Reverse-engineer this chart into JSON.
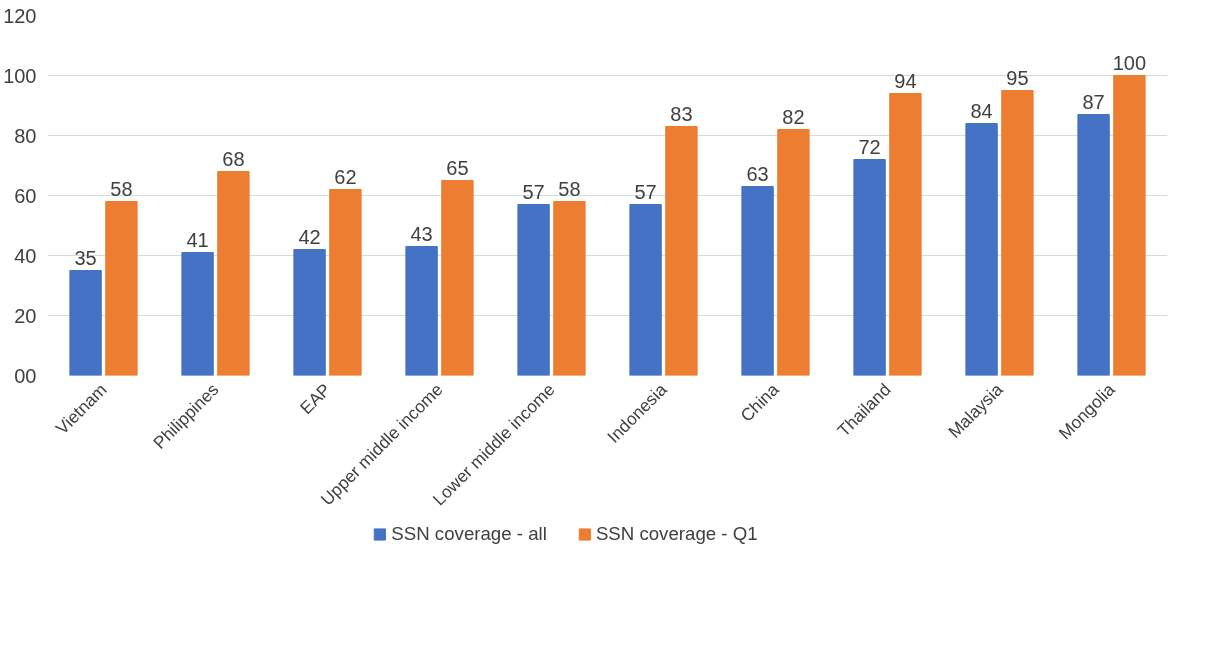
{
  "chart_data": {
    "type": "bar",
    "categories": [
      "Vietnam",
      "Philippines",
      "EAP",
      "Upper middle income",
      "Lower middle income",
      "Indonesia",
      "China",
      "Thailand",
      "Malaysia",
      "Mongolia"
    ],
    "series": [
      {
        "name": "SSN coverage - all",
        "color": "#4472c4",
        "values": [
          35,
          41,
          42,
          43,
          57,
          57,
          63,
          72,
          84,
          87
        ]
      },
      {
        "name": "SSN coverage - Q1",
        "color": "#ed7d31",
        "values": [
          58,
          68,
          62,
          65,
          58,
          83,
          82,
          94,
          95,
          100
        ]
      }
    ],
    "ylim": [
      0,
      120
    ],
    "yticks": [
      {
        "value": 0,
        "label": "00"
      },
      20,
      40,
      60,
      80,
      100,
      120
    ],
    "grid": "y",
    "legend": "bottom",
    "data_labels": true
  }
}
